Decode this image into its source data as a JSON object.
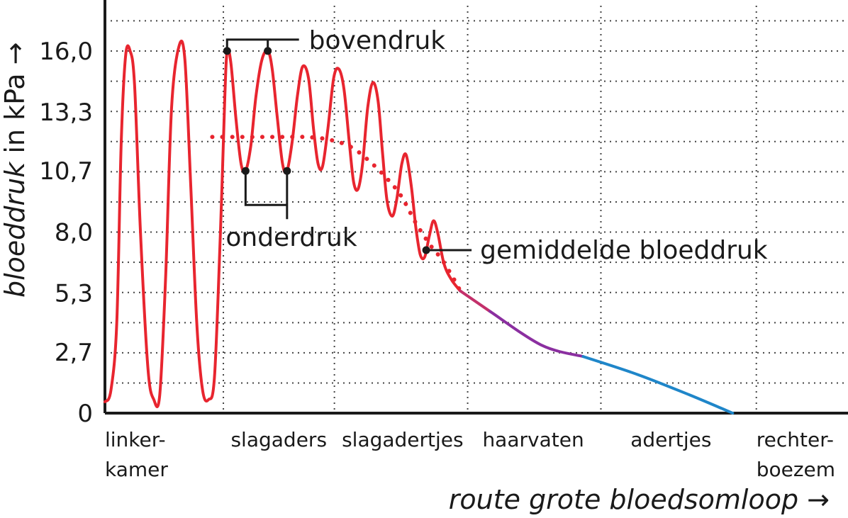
{
  "chart_data": {
    "type": "line",
    "title": "",
    "xlabel": "route grote bloedsomloop →",
    "xlabel_arrow": "→",
    "ylabel_italic": "bloeddruk",
    "ylabel_rest": " in kPa →",
    "ylim": [
      0,
      18.0
    ],
    "y_ticks": [
      0,
      2.7,
      5.3,
      8.0,
      10.7,
      13.3,
      16.0
    ],
    "y_tick_labels": [
      "0",
      "2,7",
      "5,3",
      "8,0",
      "10,7",
      "13,3",
      "16,0"
    ],
    "x_domain": [
      0,
      100
    ],
    "categories": [
      {
        "lines": [
          "linker-",
          "kamer"
        ],
        "x": 0
      },
      {
        "lines": [
          "slagaders"
        ],
        "x": 17
      },
      {
        "lines": [
          "slagadertjes"
        ],
        "x": 32
      },
      {
        "lines": [
          "haarvaten"
        ],
        "x": 51
      },
      {
        "lines": [
          "adertjes"
        ],
        "x": 71
      },
      {
        "lines": [
          "rechter-",
          "boezem"
        ],
        "x": 88
      }
    ],
    "grid": true,
    "vertical_dividers_x": [
      0,
      16,
      31,
      49,
      67,
      88,
      100
    ],
    "annotations": {
      "bovendruk": "bovendruk",
      "onderdruk": "onderdruk",
      "gemiddelde": "gemiddelde bloeddruk"
    },
    "series": [
      {
        "style": "red-solid",
        "color": "#e8252f",
        "values": [
          [
            0.0,
            0.5
          ],
          [
            0.8,
            1.0
          ],
          [
            1.6,
            4.0
          ],
          [
            2.2,
            12.0
          ],
          [
            2.8,
            15.8
          ],
          [
            3.4,
            16.0
          ],
          [
            4.0,
            14.5
          ],
          [
            4.8,
            8.0
          ],
          [
            5.8,
            2.0
          ],
          [
            6.6,
            0.6
          ],
          [
            7.4,
            0.8
          ],
          [
            8.2,
            6.0
          ],
          [
            9.0,
            13.5
          ],
          [
            10.0,
            16.2
          ],
          [
            10.8,
            15.6
          ],
          [
            11.6,
            10.0
          ],
          [
            12.4,
            4.0
          ],
          [
            13.2,
            1.0
          ],
          [
            14.0,
            0.6
          ],
          [
            14.8,
            1.6
          ],
          [
            15.6,
            8.0
          ],
          [
            16.2,
            14.0
          ],
          [
            16.5,
            16.0
          ],
          [
            17.0,
            15.5
          ],
          [
            17.7,
            13.0
          ],
          [
            18.4,
            11.0
          ],
          [
            19.0,
            10.7
          ],
          [
            19.7,
            11.8
          ],
          [
            20.4,
            14.0
          ],
          [
            21.2,
            15.6
          ],
          [
            22.0,
            16.0
          ],
          [
            22.6,
            15.2
          ],
          [
            23.3,
            13.0
          ],
          [
            24.0,
            11.0
          ],
          [
            24.6,
            10.7
          ],
          [
            25.3,
            12.0
          ],
          [
            26.0,
            14.0
          ],
          [
            26.7,
            15.3
          ],
          [
            27.5,
            14.8
          ],
          [
            28.2,
            12.5
          ],
          [
            28.8,
            11.0
          ],
          [
            29.4,
            10.9
          ],
          [
            30.1,
            12.5
          ],
          [
            30.9,
            14.8
          ],
          [
            31.6,
            15.2
          ],
          [
            32.3,
            14.3
          ],
          [
            33.0,
            12.0
          ],
          [
            33.6,
            10.2
          ],
          [
            34.2,
            9.9
          ],
          [
            34.8,
            11.0
          ],
          [
            35.5,
            13.5
          ],
          [
            36.2,
            14.6
          ],
          [
            36.9,
            13.8
          ],
          [
            37.5,
            11.5
          ],
          [
            38.1,
            9.4
          ],
          [
            38.8,
            8.7
          ],
          [
            39.4,
            9.4
          ],
          [
            40.1,
            11.0
          ],
          [
            40.7,
            11.4
          ],
          [
            41.4,
            10.0
          ],
          [
            42.0,
            8.2
          ],
          [
            42.6,
            7.0
          ],
          [
            43.2,
            6.9
          ],
          [
            43.8,
            7.8
          ],
          [
            44.4,
            8.5
          ],
          [
            45.0,
            7.9
          ],
          [
            45.8,
            6.6
          ],
          [
            46.8,
            5.9
          ],
          [
            48.0,
            5.4
          ]
        ]
      },
      {
        "style": "red-dotted",
        "color": "#e8252f",
        "values": [
          [
            14.5,
            12.2
          ],
          [
            18.0,
            12.2
          ],
          [
            21.0,
            12.2
          ],
          [
            24.0,
            12.2
          ],
          [
            27.0,
            12.2
          ],
          [
            30.0,
            12.1
          ],
          [
            33.0,
            11.8
          ],
          [
            35.5,
            11.2
          ],
          [
            38.0,
            10.4
          ],
          [
            40.0,
            9.6
          ],
          [
            42.0,
            8.4
          ],
          [
            44.0,
            7.4
          ],
          [
            45.5,
            6.8
          ],
          [
            47.0,
            6.0
          ],
          [
            48.0,
            5.4
          ]
        ]
      },
      {
        "style": "red-purple",
        "color": "#c3306a",
        "values": [
          [
            48.0,
            5.4
          ],
          [
            52.0,
            4.5
          ]
        ]
      },
      {
        "style": "purple",
        "color": "#8b2fa0",
        "values": [
          [
            52.0,
            4.5
          ],
          [
            59.0,
            3.0
          ],
          [
            64.6,
            2.5
          ]
        ]
      },
      {
        "style": "blue",
        "color": "#1f86c9",
        "values": [
          [
            64.6,
            2.5
          ],
          [
            72.0,
            1.7
          ],
          [
            79.0,
            0.8
          ],
          [
            84.8,
            0.0
          ]
        ]
      }
    ],
    "markers": [
      {
        "name": "bovendruk-1",
        "x": 16.5,
        "y": 16.0
      },
      {
        "name": "bovendruk-2",
        "x": 22.0,
        "y": 16.0
      },
      {
        "name": "onderdruk-1",
        "x": 19.0,
        "y": 10.7
      },
      {
        "name": "onderdruk-2",
        "x": 24.6,
        "y": 10.7
      },
      {
        "name": "gemiddelde",
        "x": 43.4,
        "y": 7.2
      }
    ]
  }
}
